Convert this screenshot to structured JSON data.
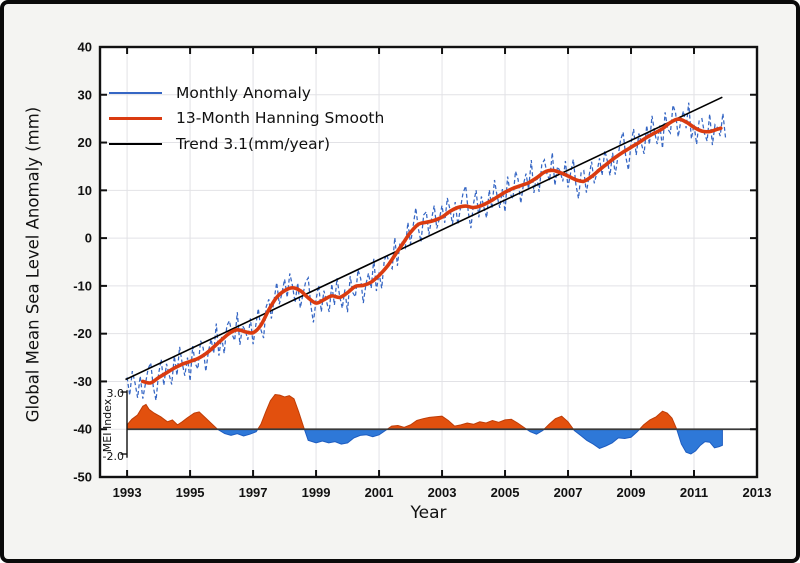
{
  "window": {
    "background_color": "#f4f4f2",
    "frame_color": "#0a0a0a",
    "plot_background": "#ffffff",
    "gridline_color": "#e2e2e6"
  },
  "legend": {
    "entries": [
      {
        "label": "Monthly Anomaly",
        "color": "#3566c4",
        "line_width": 2.5
      },
      {
        "label": "13-Month Hanning Smooth",
        "color": "#da3b10",
        "line_width": 3
      },
      {
        "label": "Trend 3.1(mm/year)",
        "color": "#000000",
        "line_width": 2
      }
    ]
  },
  "chart_data": {
    "type": "line",
    "title": "",
    "xlabel": "Year",
    "ylabel": "Global Mean Sea Level Anomaly (mm)",
    "xlim": [
      1992.14,
      2013
    ],
    "ylim": [
      -50,
      40
    ],
    "grid": true,
    "legend_position": "top-left",
    "x_ticks": [
      1993,
      1995,
      1997,
      1999,
      2001,
      2003,
      2005,
      2007,
      2009,
      2011,
      2013
    ],
    "x_tick_labels": [
      "1993",
      "1995",
      "1997",
      "1999",
      "2001",
      "2003",
      "2005",
      "2007",
      "2009",
      "2011",
      "2013"
    ],
    "y_ticks": [
      40,
      30,
      20,
      10,
      0,
      -10,
      -20,
      -30,
      -40,
      -50
    ],
    "y_tick_labels": [
      "40",
      "30",
      "20",
      "10",
      "0",
      "-10",
      "-20",
      "-30",
      "-40",
      "-50"
    ],
    "series": {
      "smooth": {
        "name": "13-Month Hanning Smooth",
        "color": "#da3b10",
        "width": 3.6,
        "points": [
          [
            1993.5,
            -30.0
          ],
          [
            1993.75,
            -30.3
          ],
          [
            1994.0,
            -29.2
          ],
          [
            1994.25,
            -28.2
          ],
          [
            1994.5,
            -27.2
          ],
          [
            1994.75,
            -26.4
          ],
          [
            1995.0,
            -25.8
          ],
          [
            1995.25,
            -25.2
          ],
          [
            1995.5,
            -24.2
          ],
          [
            1995.75,
            -22.8
          ],
          [
            1996.0,
            -21.3
          ],
          [
            1996.25,
            -19.9
          ],
          [
            1996.5,
            -19.2
          ],
          [
            1996.75,
            -19.6
          ],
          [
            1997.0,
            -19.8
          ],
          [
            1997.25,
            -18.2
          ],
          [
            1997.5,
            -15.0
          ],
          [
            1997.75,
            -12.4
          ],
          [
            1998.0,
            -11.0
          ],
          [
            1998.25,
            -10.4
          ],
          [
            1998.5,
            -11.0
          ],
          [
            1998.75,
            -12.5
          ],
          [
            1999.0,
            -13.6
          ],
          [
            1999.25,
            -12.9
          ],
          [
            1999.5,
            -12.1
          ],
          [
            1999.75,
            -12.4
          ],
          [
            2000.0,
            -11.4
          ],
          [
            2000.25,
            -10.1
          ],
          [
            2000.5,
            -9.9
          ],
          [
            2000.75,
            -9.2
          ],
          [
            2001.0,
            -7.8
          ],
          [
            2001.25,
            -6.0
          ],
          [
            2001.5,
            -3.6
          ],
          [
            2001.75,
            -1.2
          ],
          [
            2002.0,
            1.2
          ],
          [
            2002.25,
            2.9
          ],
          [
            2002.5,
            3.3
          ],
          [
            2002.75,
            3.7
          ],
          [
            2003.0,
            4.4
          ],
          [
            2003.25,
            5.6
          ],
          [
            2003.5,
            6.4
          ],
          [
            2003.75,
            6.7
          ],
          [
            2004.0,
            6.4
          ],
          [
            2004.25,
            6.8
          ],
          [
            2004.5,
            7.6
          ],
          [
            2004.75,
            8.6
          ],
          [
            2005.0,
            9.6
          ],
          [
            2005.25,
            10.4
          ],
          [
            2005.5,
            11.0
          ],
          [
            2005.75,
            11.6
          ],
          [
            2006.0,
            12.6
          ],
          [
            2006.25,
            13.8
          ],
          [
            2006.5,
            14.2
          ],
          [
            2006.75,
            13.7
          ],
          [
            2007.0,
            13.0
          ],
          [
            2007.25,
            12.2
          ],
          [
            2007.5,
            11.9
          ],
          [
            2007.75,
            12.9
          ],
          [
            2008.0,
            14.3
          ],
          [
            2008.25,
            15.6
          ],
          [
            2008.5,
            16.9
          ],
          [
            2008.75,
            18.0
          ],
          [
            2009.0,
            19.0
          ],
          [
            2009.25,
            20.0
          ],
          [
            2009.5,
            21.1
          ],
          [
            2009.75,
            22.0
          ],
          [
            2010.0,
            22.9
          ],
          [
            2010.25,
            24.2
          ],
          [
            2010.5,
            24.9
          ],
          [
            2010.75,
            24.3
          ],
          [
            2011.0,
            23.2
          ],
          [
            2011.25,
            22.4
          ],
          [
            2011.5,
            22.3
          ],
          [
            2011.75,
            22.8
          ],
          [
            2011.85,
            23.0
          ]
        ]
      },
      "trend": {
        "name": "Trend 3.1(mm/year)",
        "rate_mm_per_year": 3.1,
        "color": "#000000",
        "width": 1.6,
        "points": [
          [
            1992.95,
            -29.6
          ],
          [
            2011.9,
            29.5
          ]
        ]
      },
      "monthly": {
        "name": "Monthly Anomaly",
        "color": "#3566c4",
        "width": 1.25,
        "dash": [
          4,
          2.6
        ],
        "start_year": 1993.0,
        "end_year": 2012.0,
        "step_years": 0.08333,
        "noise_mm": [
          2.4,
          -1.6,
          3.2,
          0.5,
          -2.9,
          1.4,
          -3.6,
          -0.3,
          2.8,
          4.2,
          -1.2,
          -4.4,
          0.8,
          3.5,
          -2.3,
          1.9,
          -0.7,
          -3.1,
          2.5,
          -1.8,
          3.9,
          0.2,
          -2.6,
          1.0,
          -4.1,
          3.0,
          -0.9,
          -2.2,
          3.4,
          1.5,
          -3.7,
          0.0,
          2.1,
          -1.3,
          4.4,
          -2.8,
          0.6,
          -3.3,
          2.0,
          2.6,
          -0.5,
          -2.0,
          3.7,
          -3.0,
          1.1,
          0.3,
          -1.6,
          2.9,
          -2.4,
          0.9,
          4.0,
          -1.0,
          -3.8,
          1.7,
          2.2,
          -2.7,
          0.4,
          3.1,
          -1.9,
          -0.1
        ]
      }
    },
    "inset": {
      "label": "MEI Index",
      "y_tick_labels": [
        "3.0",
        "-2.0"
      ],
      "y_tick_values": [
        3.0,
        -2.0
      ],
      "zero_aligned_with_main_value": -40,
      "positive_color": "#e2500e",
      "negative_color": "#2e78d8",
      "zero_line_color": "#3a3a3a",
      "points": [
        [
          1993.0,
          0.35
        ],
        [
          1993.15,
          0.8
        ],
        [
          1993.33,
          1.15
        ],
        [
          1993.5,
          1.85
        ],
        [
          1993.6,
          2.0
        ],
        [
          1993.7,
          1.6
        ],
        [
          1993.86,
          1.3
        ],
        [
          1994.07,
          1.0
        ],
        [
          1994.28,
          0.6
        ],
        [
          1994.44,
          0.75
        ],
        [
          1994.6,
          0.35
        ],
        [
          1994.75,
          0.6
        ],
        [
          1994.9,
          0.9
        ],
        [
          1995.13,
          1.3
        ],
        [
          1995.29,
          1.4
        ],
        [
          1995.5,
          0.9
        ],
        [
          1995.66,
          0.5
        ],
        [
          1995.87,
          0.0
        ],
        [
          1996.1,
          -0.35
        ],
        [
          1996.3,
          -0.5
        ],
        [
          1996.5,
          -0.35
        ],
        [
          1996.7,
          -0.55
        ],
        [
          1996.9,
          -0.4
        ],
        [
          1997.1,
          -0.2
        ],
        [
          1997.25,
          0.4
        ],
        [
          1997.4,
          1.4
        ],
        [
          1997.55,
          2.3
        ],
        [
          1997.7,
          2.8
        ],
        [
          1997.85,
          2.75
        ],
        [
          1998.0,
          2.6
        ],
        [
          1998.15,
          2.7
        ],
        [
          1998.3,
          2.45
        ],
        [
          1998.45,
          1.4
        ],
        [
          1998.6,
          0.2
        ],
        [
          1998.75,
          -0.9
        ],
        [
          1999.0,
          -1.1
        ],
        [
          1999.2,
          -0.95
        ],
        [
          1999.4,
          -1.1
        ],
        [
          1999.6,
          -1.0
        ],
        [
          1999.8,
          -1.2
        ],
        [
          2000.0,
          -1.1
        ],
        [
          2000.2,
          -0.7
        ],
        [
          2000.4,
          -0.5
        ],
        [
          2000.6,
          -0.45
        ],
        [
          2000.8,
          -0.6
        ],
        [
          2001.0,
          -0.45
        ],
        [
          2001.2,
          -0.1
        ],
        [
          2001.4,
          0.25
        ],
        [
          2001.6,
          0.3
        ],
        [
          2001.8,
          0.15
        ],
        [
          2002.0,
          0.35
        ],
        [
          2002.2,
          0.7
        ],
        [
          2002.4,
          0.85
        ],
        [
          2002.6,
          0.95
        ],
        [
          2002.8,
          1.0
        ],
        [
          2003.0,
          1.05
        ],
        [
          2003.2,
          0.7
        ],
        [
          2003.4,
          0.25
        ],
        [
          2003.6,
          0.35
        ],
        [
          2003.8,
          0.5
        ],
        [
          2004.0,
          0.4
        ],
        [
          2004.2,
          0.6
        ],
        [
          2004.4,
          0.5
        ],
        [
          2004.6,
          0.7
        ],
        [
          2004.8,
          0.55
        ],
        [
          2005.0,
          0.75
        ],
        [
          2005.2,
          0.8
        ],
        [
          2005.4,
          0.5
        ],
        [
          2005.6,
          0.15
        ],
        [
          2005.8,
          -0.2
        ],
        [
          2006.0,
          -0.4
        ],
        [
          2006.2,
          -0.1
        ],
        [
          2006.4,
          0.4
        ],
        [
          2006.6,
          0.85
        ],
        [
          2006.8,
          1.05
        ],
        [
          2007.0,
          0.6
        ],
        [
          2007.2,
          -0.1
        ],
        [
          2007.4,
          -0.5
        ],
        [
          2007.6,
          -0.9
        ],
        [
          2007.8,
          -1.2
        ],
        [
          2008.0,
          -1.55
        ],
        [
          2008.2,
          -1.35
        ],
        [
          2008.4,
          -1.1
        ],
        [
          2008.6,
          -0.7
        ],
        [
          2008.8,
          -0.75
        ],
        [
          2009.0,
          -0.65
        ],
        [
          2009.2,
          -0.2
        ],
        [
          2009.4,
          0.35
        ],
        [
          2009.6,
          0.75
        ],
        [
          2009.8,
          1.0
        ],
        [
          2010.0,
          1.45
        ],
        [
          2010.15,
          1.3
        ],
        [
          2010.3,
          0.9
        ],
        [
          2010.45,
          0.0
        ],
        [
          2010.6,
          -1.2
        ],
        [
          2010.75,
          -1.85
        ],
        [
          2010.9,
          -2.0
        ],
        [
          2011.05,
          -1.75
        ],
        [
          2011.2,
          -1.3
        ],
        [
          2011.35,
          -1.0
        ],
        [
          2011.5,
          -1.05
        ],
        [
          2011.65,
          -1.5
        ],
        [
          2011.8,
          -1.4
        ],
        [
          2011.9,
          -1.3
        ]
      ]
    }
  }
}
